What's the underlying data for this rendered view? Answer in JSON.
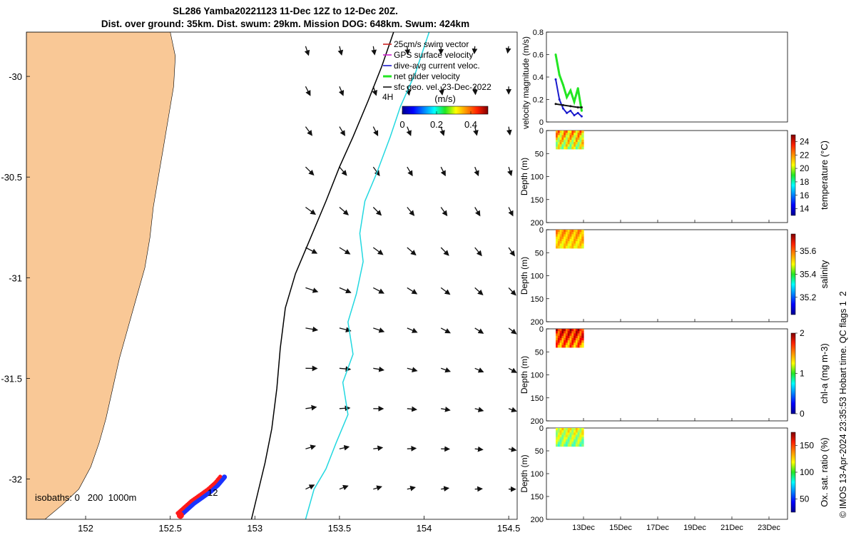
{
  "title": {
    "line1": "SL286 Yamba20221123 11-Dec 12Z to 12-Dec 20Z.",
    "line2": "Dist. over ground: 35km. Dist. swum: 29km. Mission DOG: 648km. Swum: 424km"
  },
  "colors": {
    "land": "#f9c896",
    "glider_track_red": "#ff1a1a",
    "glider_track_blue": "#1a32ff",
    "isobath_200": "#000000",
    "isobath_1000": "#22d8e0",
    "velocity_green": "#22e622",
    "velocity_blue": "#1a1acc",
    "velocity_black": "#111111"
  },
  "chart_data": [
    {
      "type": "map",
      "id": "track-map",
      "xticks": [
        "152",
        "152.5",
        "153",
        "153.5",
        "154",
        "154.5"
      ],
      "xtick_values": [
        152,
        152.5,
        153,
        153.5,
        154,
        154.5
      ],
      "yticks": [
        "-30",
        "-30.5",
        "-31",
        "-31.5",
        "-32"
      ],
      "ytick_values": [
        -30,
        -30.5,
        -31,
        -31.5,
        -32
      ],
      "xlim": [
        151.65,
        154.55
      ],
      "ylim": [
        -32.2,
        -29.78
      ],
      "legend": [
        "25cm/s swim vector",
        "GPS surface velocity",
        "dive-avg current veloc.",
        "net glider velocity",
        "sfc geo. vel. 23-Dec-2022"
      ],
      "colorbar": {
        "label": "(m/s)",
        "ticks": [
          "0",
          "0.2",
          "0.4"
        ],
        "range": [
          0,
          0.5
        ]
      },
      "annotations": {
        "isobaths": "isobaths: 0   200  1000m",
        "track_end": "12",
        "top_label": "4H"
      },
      "coastline": [
        [
          151.65,
          -29.78
        ],
        [
          152.5,
          -29.78
        ],
        [
          152.53,
          -29.9
        ],
        [
          152.52,
          -30.05
        ],
        [
          152.49,
          -30.2
        ],
        [
          152.46,
          -30.35
        ],
        [
          152.43,
          -30.5
        ],
        [
          152.4,
          -30.65
        ],
        [
          152.38,
          -30.8
        ],
        [
          152.35,
          -30.95
        ],
        [
          152.3,
          -31.1
        ],
        [
          152.25,
          -31.25
        ],
        [
          152.2,
          -31.4
        ],
        [
          152.16,
          -31.55
        ],
        [
          152.12,
          -31.7
        ],
        [
          152.08,
          -31.82
        ],
        [
          152.03,
          -31.94
        ],
        [
          151.96,
          -32.05
        ],
        [
          151.86,
          -32.13
        ],
        [
          151.76,
          -32.2
        ],
        [
          151.65,
          -32.2
        ]
      ],
      "isobath_200": [
        [
          153.82,
          -29.78
        ],
        [
          153.75,
          -29.95
        ],
        [
          153.67,
          -30.12
        ],
        [
          153.58,
          -30.3
        ],
        [
          153.5,
          -30.45
        ],
        [
          153.42,
          -30.62
        ],
        [
          153.33,
          -30.8
        ],
        [
          153.24,
          -30.98
        ],
        [
          153.18,
          -31.15
        ],
        [
          153.15,
          -31.35
        ],
        [
          153.13,
          -31.55
        ],
        [
          153.1,
          -31.75
        ],
        [
          153.06,
          -31.92
        ],
        [
          153.02,
          -32.06
        ],
        [
          152.98,
          -32.2
        ]
      ],
      "isobath_1000": [
        [
          154.03,
          -29.78
        ],
        [
          153.95,
          -29.98
        ],
        [
          153.86,
          -30.15
        ],
        [
          153.8,
          -30.3
        ],
        [
          153.72,
          -30.48
        ],
        [
          153.65,
          -30.62
        ],
        [
          153.62,
          -30.78
        ],
        [
          153.64,
          -30.92
        ],
        [
          153.6,
          -31.08
        ],
        [
          153.55,
          -31.22
        ],
        [
          153.58,
          -31.38
        ],
        [
          153.52,
          -31.52
        ],
        [
          153.55,
          -31.68
        ],
        [
          153.48,
          -31.82
        ],
        [
          153.42,
          -31.95
        ],
        [
          153.35,
          -32.05
        ],
        [
          153.3,
          -32.2
        ]
      ],
      "track": [
        [
          152.56,
          -32.18
        ],
        [
          152.6,
          -32.15
        ],
        [
          152.64,
          -32.12
        ],
        [
          152.69,
          -32.09
        ],
        [
          152.74,
          -32.06
        ],
        [
          152.78,
          -32.03
        ],
        [
          152.82,
          -31.99
        ]
      ],
      "vector_field_lon": [
        153.3,
        153.5,
        153.7,
        153.9,
        154.1,
        154.3,
        154.5
      ],
      "vector_field_lat": [
        -29.85,
        -30.05,
        -30.25,
        -30.45,
        -30.65,
        -30.85,
        -31.05,
        -31.25,
        -31.45,
        -31.65,
        -31.85,
        -32.05
      ]
    },
    {
      "type": "line",
      "id": "velocity-panel",
      "ylabel": "velocity magnitude (m/s)",
      "yticks": [
        "0",
        "0.2",
        "0.4",
        "0.6",
        "0.8"
      ],
      "ylim": [
        0,
        0.8
      ],
      "xlim_days": [
        11,
        24
      ],
      "series": [
        {
          "name": "net glider velocity",
          "color": "#22e622",
          "x": [
            11.5,
            11.7,
            11.9,
            12.1,
            12.3,
            12.5,
            12.7,
            12.9
          ],
          "y": [
            0.6,
            0.42,
            0.33,
            0.22,
            0.28,
            0.18,
            0.3,
            0.1
          ]
        },
        {
          "name": "dive-avg current veloc.",
          "color": "#1a1acc",
          "x": [
            11.5,
            11.7,
            11.9,
            12.1,
            12.3,
            12.5,
            12.7,
            12.9
          ],
          "y": [
            0.38,
            0.2,
            0.12,
            0.08,
            0.1,
            0.06,
            0.08,
            0.05
          ]
        },
        {
          "name": "sfc geo. vel.",
          "color": "#111111",
          "x": [
            11.5,
            11.9,
            12.3,
            12.7,
            12.9
          ],
          "y": [
            0.16,
            0.15,
            0.14,
            0.13,
            0.13
          ]
        }
      ]
    },
    {
      "type": "heatmap",
      "id": "temperature-panel",
      "ylabel": "Depth (m)",
      "yticks": [
        "0",
        "50",
        "100",
        "150",
        "200"
      ],
      "ylim": [
        0,
        200
      ],
      "colorbar": {
        "label": "temperature (°C)",
        "ticks": [
          "14",
          "16",
          "18",
          "20",
          "22",
          "24"
        ],
        "range": [
          13,
          25
        ]
      },
      "x_days": [
        11.5,
        13.0
      ],
      "depth_range": [
        0,
        40
      ],
      "value_range": [
        18,
        23
      ]
    },
    {
      "type": "heatmap",
      "id": "salinity-panel",
      "ylabel": "Depth (m)",
      "yticks": [
        "0",
        "50",
        "100",
        "150",
        "200"
      ],
      "ylim": [
        0,
        200
      ],
      "colorbar": {
        "label": "salinity",
        "ticks": [
          "35.2",
          "35.4",
          "35.6"
        ],
        "range": [
          35.05,
          35.75
        ]
      },
      "x_days": [
        11.5,
        13.0
      ],
      "depth_range": [
        0,
        40
      ],
      "value_range": [
        35.45,
        35.6
      ]
    },
    {
      "type": "heatmap",
      "id": "chla-panel",
      "ylabel": "Depth (m)",
      "yticks": [
        "0",
        "50",
        "100",
        "150",
        "200"
      ],
      "ylim": [
        0,
        200
      ],
      "colorbar": {
        "label": "chl-a (mg m-3)",
        "ticks": [
          "0",
          "1",
          "2"
        ],
        "range": [
          0,
          2
        ]
      },
      "x_days": [
        11.5,
        13.0
      ],
      "depth_range": [
        0,
        40
      ],
      "value_range": [
        1.2,
        2.0
      ]
    },
    {
      "type": "heatmap",
      "id": "oxygen-panel",
      "ylabel": "Depth (m)",
      "yticks": [
        "0",
        "50",
        "100",
        "150",
        "200"
      ],
      "ylim": [
        0,
        200
      ],
      "xticks": [
        "13Dec",
        "15Dec",
        "17Dec",
        "19Dec",
        "21Dec",
        "23Dec"
      ],
      "xtick_values": [
        13,
        15,
        17,
        19,
        21,
        23
      ],
      "colorbar": {
        "label": "Ox. sat. ratio (%)",
        "ticks": [
          "50",
          "100",
          "150"
        ],
        "range": [
          25,
          175
        ]
      },
      "x_days": [
        11.5,
        13.0
      ],
      "depth_range": [
        0,
        40
      ],
      "value_range": [
        85,
        130
      ]
    }
  ],
  "footer": {
    "credit": "© IMOS 13-Apr-2024 23:35:53 Hobart time. QC flags 1  2"
  }
}
